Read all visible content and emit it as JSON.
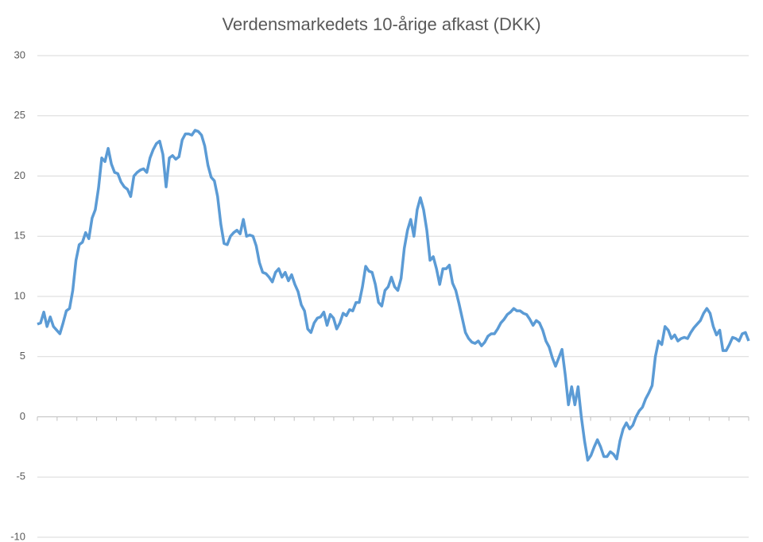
{
  "chart_data": {
    "type": "line",
    "title": "Verdensmarkedets 10-årige afkast (DKK)",
    "series": [
      {
        "name": null,
        "color": "#5b9bd5",
        "values": [
          7.7,
          7.8,
          8.7,
          7.5,
          8.3,
          7.5,
          7.2,
          6.9,
          7.8,
          8.8,
          9,
          10.5,
          13,
          14.3,
          14.5,
          15.3,
          14.8,
          16.5,
          17.2,
          19,
          21.5,
          21.2,
          22.3,
          21,
          20.3,
          20.2,
          19.5,
          19.1,
          18.9,
          18.3,
          20,
          20.3,
          20.5,
          20.6,
          20.3,
          21.5,
          22.2,
          22.7,
          22.9,
          21.8,
          19.1,
          21.5,
          21.7,
          21.4,
          21.6,
          23,
          23.5,
          23.5,
          23.4,
          23.8,
          23.7,
          23.4,
          22.5,
          20.9,
          19.9,
          19.6,
          18.3,
          16,
          14.4,
          14.3,
          15,
          15.3,
          15.5,
          15.2,
          16.4,
          15,
          15.1,
          15,
          14.2,
          12.8,
          12,
          11.9,
          11.6,
          11.2,
          12,
          12.3,
          11.6,
          12,
          11.3,
          11.8,
          11,
          10.4,
          9.3,
          8.8,
          7.3,
          7,
          7.8,
          8.2,
          8.3,
          8.7,
          7.6,
          8.5,
          8.2,
          7.3,
          7.8,
          8.6,
          8.4,
          8.9,
          8.8,
          9.5,
          9.5,
          10.8,
          12.5,
          12.1,
          12,
          11,
          9.5,
          9.2,
          10.5,
          10.8,
          11.6,
          10.8,
          10.5,
          11.5,
          14,
          15.5,
          16.4,
          15,
          17.2,
          18.2,
          17.2,
          15.5,
          13,
          13.3,
          12.3,
          11,
          12.3,
          12.3,
          12.6,
          11.1,
          10.5,
          9.4,
          8.2,
          7,
          6.5,
          6.2,
          6.1,
          6.3,
          5.9,
          6.2,
          6.7,
          6.9,
          6.9,
          7.3,
          7.8,
          8.1,
          8.5,
          8.7,
          9,
          8.8,
          8.8,
          8.6,
          8.5,
          8.1,
          7.6,
          8,
          7.8,
          7.2,
          6.3,
          5.8,
          4.9,
          4.2,
          4.9,
          5.6,
          3.5,
          1,
          2.5,
          1,
          2.5,
          0,
          -2,
          -3.6,
          -3.2,
          -2.5,
          -1.9,
          -2.5,
          -3.3,
          -3.3,
          -2.9,
          -3.1,
          -3.5,
          -2,
          -1,
          -0.5,
          -1,
          -0.7,
          0,
          0.5,
          0.8,
          1.5,
          2,
          2.6,
          5,
          6.3,
          6,
          7.5,
          7.2,
          6.5,
          6.8,
          6.3,
          6.5,
          6.6,
          6.5,
          7,
          7.4,
          7.7,
          8,
          8.6,
          9,
          8.6,
          7.5,
          6.8,
          7.2,
          5.5,
          5.5,
          6,
          6.6,
          6.5,
          6.3,
          6.9,
          7,
          6.3
        ]
      }
    ],
    "ylim": [
      -10,
      30
    ],
    "yticks": [
      -10,
      -5,
      0,
      5,
      10,
      15,
      20,
      25,
      30
    ],
    "grid": true
  }
}
